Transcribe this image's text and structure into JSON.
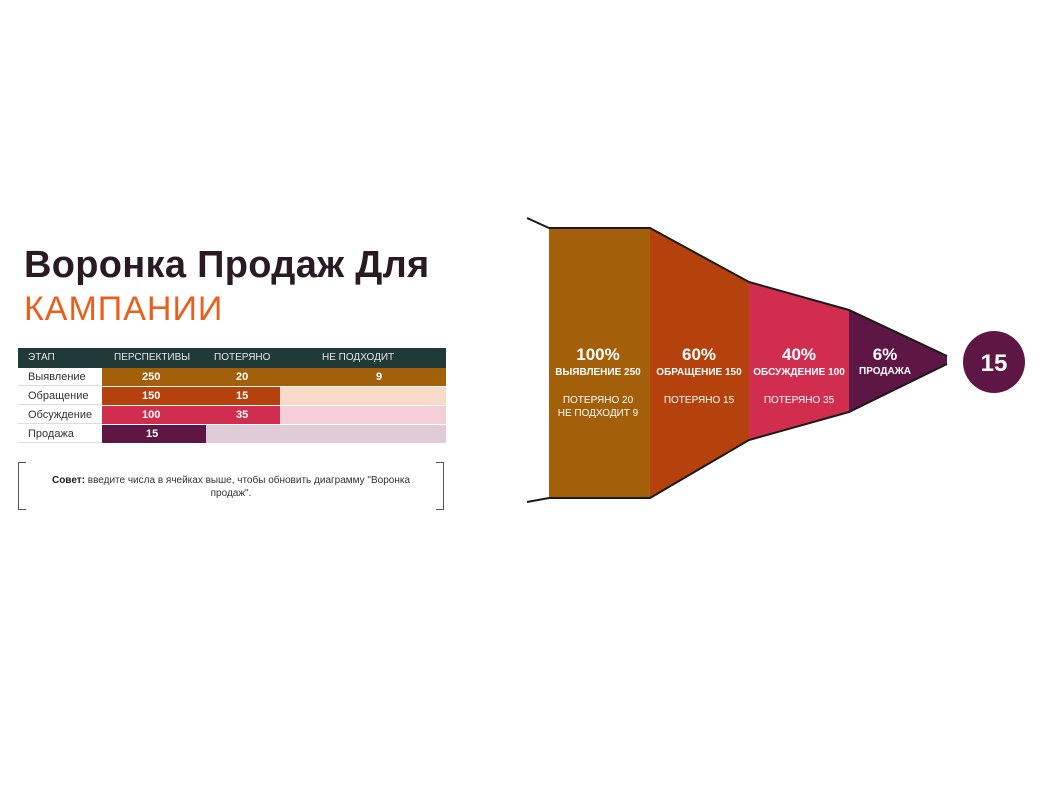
{
  "title": {
    "line1": "Воронка Продаж Для",
    "line2": "КАМПАНИИ"
  },
  "table": {
    "headers": [
      "ЭТАП",
      "ПЕРСПЕКТИВЫ",
      "ПОТЕРЯНО",
      "НЕ ПОДХОДИТ"
    ],
    "rows": [
      {
        "stage": "Выявление",
        "prospects": "250",
        "lost": "20",
        "not_fit": "9"
      },
      {
        "stage": "Обращение",
        "prospects": "150",
        "lost": "15",
        "not_fit": ""
      },
      {
        "stage": "Обсуждение",
        "prospects": "100",
        "lost": "35",
        "not_fit": ""
      },
      {
        "stage": "Продажа",
        "prospects": "15",
        "lost": "",
        "not_fit": ""
      }
    ]
  },
  "tip": {
    "label": "Совет:",
    "text": " введите числа в ячейках выше, чтобы обновить диаграмму \"Воронка продаж\"."
  },
  "colors": {
    "stage1": "#a35f0a",
    "stage2": "#b5410d",
    "stage3": "#d12d4f",
    "stage4": "#5e1744",
    "stage1_light": "#f7d8c6",
    "stage2_light": "#fbd7d2",
    "stage3_light": "#f1c9d3",
    "stage4_light": "#dcc9d4",
    "table_header": "#203a3a",
    "title_orange": "#e8601c"
  },
  "chart_data": {
    "type": "funnel",
    "stages": [
      {
        "percent": "100%",
        "name_value": "ВЫЯВЛЕНИЕ 250",
        "details": [
          "ПОТЕРЯНО 20",
          "НЕ ПОДХОДИТ 9"
        ],
        "value": 250
      },
      {
        "percent": "60%",
        "name_value": "ОБРАЩЕНИЕ 150",
        "details": [
          "ПОТЕРЯНО 15"
        ],
        "value": 150
      },
      {
        "percent": "40%",
        "name_value": "ОБСУЖДЕНИЕ 100",
        "details": [
          "ПОТЕРЯНО 35"
        ],
        "value": 100
      },
      {
        "percent": "6%",
        "name_value": "ПРОДАЖА",
        "details": [],
        "value": 15
      }
    ],
    "result": "15"
  }
}
